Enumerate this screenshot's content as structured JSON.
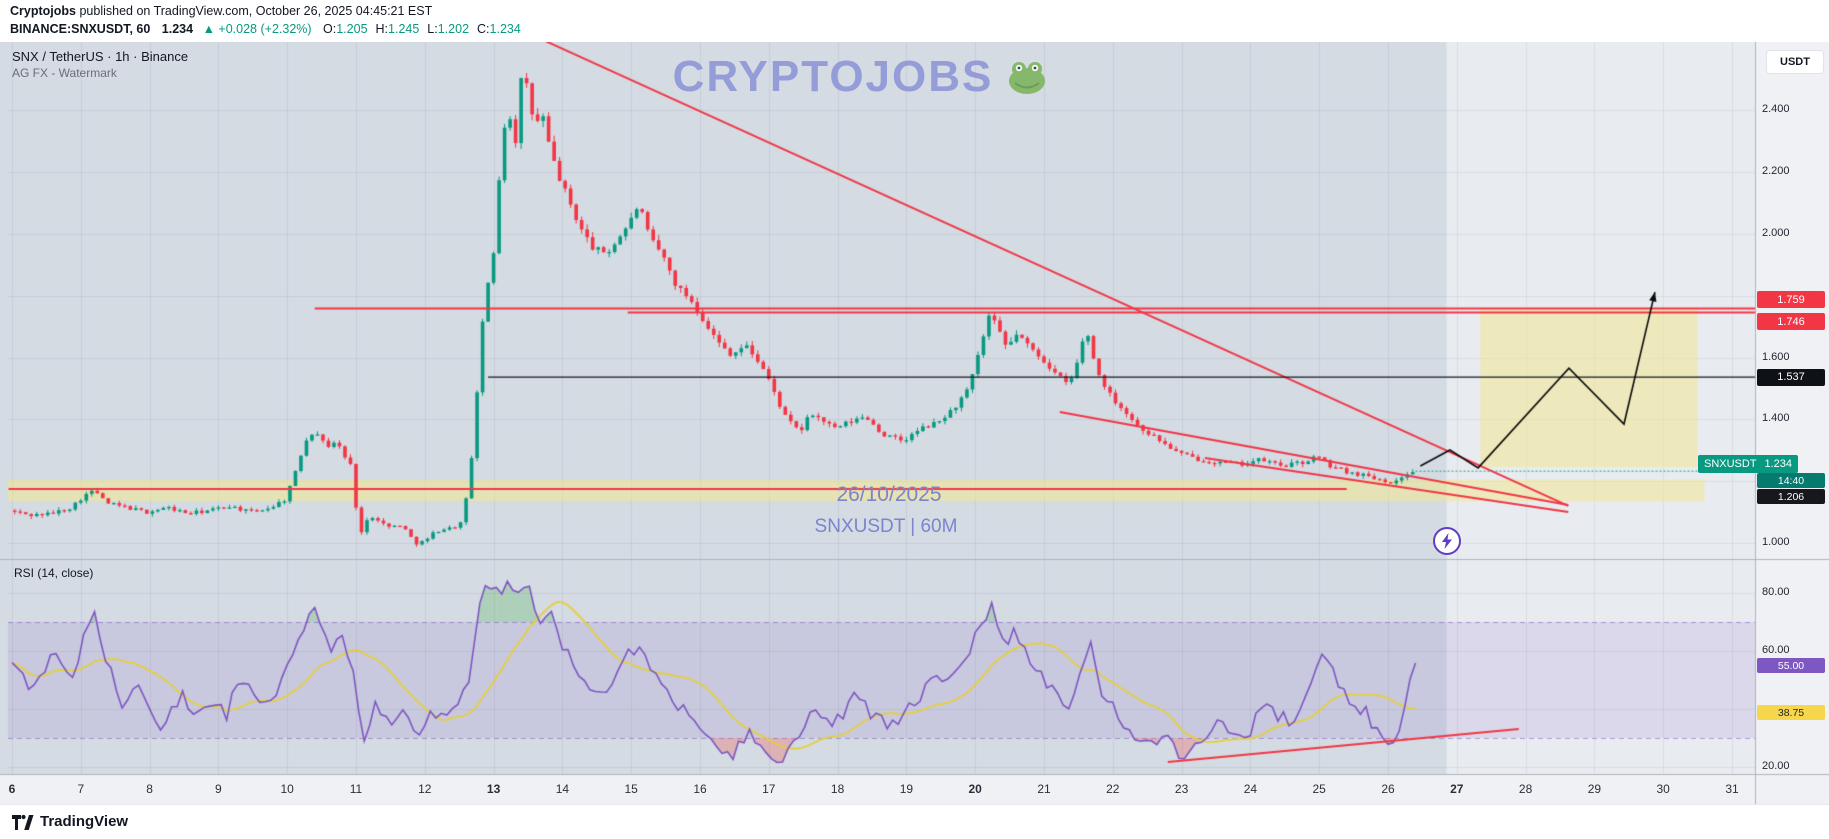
{
  "header": {
    "author": "Cryptojobs",
    "publish_text": " published on TradingView.com, October 26, 2025 04:45:21 EST",
    "symbol_line": {
      "symbol": "BINANCE:SNXUSDT, 60",
      "last": "1.234",
      "arrow": "▲",
      "change": "+0.028 (+2.32%)",
      "ohlc": [
        {
          "k": "O:",
          "v": "1.205"
        },
        {
          "k": "H:",
          "v": "1.245"
        },
        {
          "k": "L:",
          "v": "1.202"
        },
        {
          "k": "C:",
          "v": "1.234"
        }
      ]
    }
  },
  "chart": {
    "legend_title": "SNX / TetherUS · 1h · Binance",
    "legend_sub": "AG FX - Watermark",
    "watermark": "CRYPTOJOBS",
    "annotation_date": "26/10/2025",
    "annotation_symbol": "SNXUSDT | 60M",
    "currency_button": "USDT",
    "rsi_label": "RSI (14, close)",
    "price_axis_labels": [
      {
        "p": 2.4,
        "label": "2.400"
      },
      {
        "p": 2.2,
        "label": "2.200"
      },
      {
        "p": 2.0,
        "label": "2.000"
      },
      {
        "p": 1.6,
        "label": "1.600"
      },
      {
        "p": 1.4,
        "label": "1.400"
      },
      {
        "p": 1.0,
        "label": "1.000"
      }
    ],
    "price_tags": [
      {
        "id": "res1",
        "label": "1.759",
        "price": 1.759,
        "bg": "#f23645"
      },
      {
        "id": "res2",
        "label": "1.746",
        "price": 1.746,
        "bg": "#f23645"
      },
      {
        "id": "mid",
        "label": "1.537",
        "price": 1.537,
        "bg": "#0f1118"
      },
      {
        "id": "last",
        "prefix": "SNXUSDT",
        "label": "1.234",
        "price": 1.234,
        "bg": "#089981"
      },
      {
        "id": "countdown",
        "label": "14:40",
        "bg": "#067a6e"
      },
      {
        "id": "low",
        "label": "1.206",
        "bg": "#16181e"
      }
    ],
    "rsi_axis_labels": [
      {
        "v": 80,
        "label": "80.00"
      },
      {
        "v": 60,
        "label": "60.00"
      },
      {
        "v": 20,
        "label": "20.00"
      }
    ],
    "rsi_tags": [
      {
        "label": "55.00",
        "value": 55.0,
        "bg": "#7e57c2",
        "fg": "#ffffff"
      },
      {
        "label": "38.75",
        "value": 38.75,
        "bg": "#f6d64b",
        "fg": "#1e222d"
      }
    ],
    "time_axis": {
      "labels": [
        "6",
        "7",
        "8",
        "9",
        "10",
        "11",
        "12",
        "13",
        "14",
        "15",
        "16",
        "17",
        "18",
        "19",
        "20",
        "21",
        "22",
        "23",
        "24",
        "25",
        "26",
        "27",
        "28",
        "29",
        "30",
        "31"
      ],
      "bold_labels": [
        "6",
        "13",
        "20",
        "27"
      ]
    }
  },
  "chart_data": {
    "type": "candlestick",
    "symbol": "SNXUSDT",
    "exchange": "Binance",
    "interval": "1h",
    "x_axis": {
      "unit": "day of October 2025",
      "start": 6,
      "end": 31.35
    },
    "y_axis": {
      "min": 0.95,
      "max": 2.61,
      "grid_step": 0.2
    },
    "last_price": 1.234,
    "colors": {
      "up": "#089981",
      "down": "#f23645",
      "line_red": "#f23645",
      "rsi_line": "#7e57c2",
      "rsi_ma": "#e5cf3e",
      "zone_yellow": "rgba(242,232,143,0.55)",
      "band_purple": "rgba(126,87,194,0.13)"
    },
    "price_anchors": [
      [
        6.0,
        1.105
      ],
      [
        6.3,
        1.09
      ],
      [
        6.6,
        1.095
      ],
      [
        6.9,
        1.115
      ],
      [
        7.1,
        1.155
      ],
      [
        7.25,
        1.17
      ],
      [
        7.4,
        1.13
      ],
      [
        7.7,
        1.115
      ],
      [
        8.0,
        1.1
      ],
      [
        8.3,
        1.115
      ],
      [
        8.6,
        1.095
      ],
      [
        8.9,
        1.105
      ],
      [
        9.2,
        1.12
      ],
      [
        9.5,
        1.1
      ],
      [
        9.8,
        1.115
      ],
      [
        10.0,
        1.14
      ],
      [
        10.15,
        1.22
      ],
      [
        10.3,
        1.33
      ],
      [
        10.45,
        1.37
      ],
      [
        10.6,
        1.31
      ],
      [
        10.75,
        1.33
      ],
      [
        10.9,
        1.27
      ],
      [
        11.0,
        1.24
      ],
      [
        11.08,
        1.0
      ],
      [
        11.15,
        1.06
      ],
      [
        11.3,
        1.09
      ],
      [
        11.5,
        1.05
      ],
      [
        11.7,
        1.06
      ],
      [
        11.9,
        1.0
      ],
      [
        12.05,
        1.005
      ],
      [
        12.2,
        1.04
      ],
      [
        12.45,
        1.05
      ],
      [
        12.6,
        1.07
      ],
      [
        12.72,
        1.28
      ],
      [
        12.8,
        1.48
      ],
      [
        12.88,
        1.72
      ],
      [
        12.95,
        1.82
      ],
      [
        13.05,
        1.95
      ],
      [
        13.15,
        2.28
      ],
      [
        13.25,
        2.42
      ],
      [
        13.35,
        2.28
      ],
      [
        13.45,
        2.52
      ],
      [
        13.55,
        2.46
      ],
      [
        13.65,
        2.32
      ],
      [
        13.72,
        2.42
      ],
      [
        13.85,
        2.28
      ],
      [
        14.0,
        2.18
      ],
      [
        14.15,
        2.1
      ],
      [
        14.3,
        2.02
      ],
      [
        14.5,
        1.95
      ],
      [
        14.7,
        1.94
      ],
      [
        14.9,
        2.0
      ],
      [
        15.05,
        2.05
      ],
      [
        15.15,
        2.1
      ],
      [
        15.3,
        1.99
      ],
      [
        15.5,
        1.93
      ],
      [
        15.7,
        1.83
      ],
      [
        15.9,
        1.79
      ],
      [
        16.1,
        1.72
      ],
      [
        16.3,
        1.65
      ],
      [
        16.5,
        1.61
      ],
      [
        16.7,
        1.64
      ],
      [
        16.85,
        1.6
      ],
      [
        17.0,
        1.55
      ],
      [
        17.15,
        1.47
      ],
      [
        17.3,
        1.4
      ],
      [
        17.5,
        1.36
      ],
      [
        17.65,
        1.42
      ],
      [
        17.8,
        1.4
      ],
      [
        18.0,
        1.37
      ],
      [
        18.2,
        1.39
      ],
      [
        18.45,
        1.41
      ],
      [
        18.7,
        1.35
      ],
      [
        19.0,
        1.33
      ],
      [
        19.25,
        1.37
      ],
      [
        19.5,
        1.39
      ],
      [
        19.75,
        1.44
      ],
      [
        19.95,
        1.5
      ],
      [
        20.1,
        1.62
      ],
      [
        20.25,
        1.74
      ],
      [
        20.35,
        1.7
      ],
      [
        20.5,
        1.63
      ],
      [
        20.65,
        1.68
      ],
      [
        20.8,
        1.64
      ],
      [
        21.0,
        1.6
      ],
      [
        21.2,
        1.55
      ],
      [
        21.4,
        1.51
      ],
      [
        21.55,
        1.6
      ],
      [
        21.65,
        1.7
      ],
      [
        21.8,
        1.56
      ],
      [
        22.0,
        1.48
      ],
      [
        22.2,
        1.43
      ],
      [
        22.4,
        1.38
      ],
      [
        22.6,
        1.35
      ],
      [
        22.8,
        1.32
      ],
      [
        23.0,
        1.29
      ],
      [
        23.3,
        1.27
      ],
      [
        23.6,
        1.26
      ],
      [
        23.9,
        1.255
      ],
      [
        24.2,
        1.27
      ],
      [
        24.5,
        1.25
      ],
      [
        24.8,
        1.26
      ],
      [
        25.0,
        1.28
      ],
      [
        25.2,
        1.25
      ],
      [
        25.45,
        1.23
      ],
      [
        25.7,
        1.22
      ],
      [
        25.95,
        1.205
      ],
      [
        26.15,
        1.195
      ],
      [
        26.3,
        1.225
      ],
      [
        26.4,
        1.234
      ]
    ],
    "candle_step_days": 0.08,
    "levels": {
      "resistance": [
        1.759,
        1.746
      ],
      "neckline": 1.537,
      "support_zone": [
        1.135,
        1.205
      ],
      "support_line": 1.175
    },
    "trendlines": [
      {
        "id": "descending-resistance",
        "from": [
          13.7,
          2.63
        ],
        "to": [
          28.62,
          1.12
        ],
        "color": "#f23645",
        "width": 2
      },
      {
        "id": "wedge-upper",
        "from": [
          21.23,
          1.424
        ],
        "to": [
          28.62,
          1.123
        ],
        "color": "#f23645",
        "width": 2
      },
      {
        "id": "wedge-lower",
        "from": [
          23.34,
          1.275
        ],
        "to": [
          28.62,
          1.1
        ],
        "color": "#f23645",
        "width": 2
      },
      {
        "id": "support-horizontal",
        "from": [
          5.95,
          1.175
        ],
        "to": [
          25.4,
          1.175
        ],
        "color": "#f23645",
        "width": 2
      },
      {
        "id": "resistance-1759",
        "from": [
          10.4,
          1.759
        ],
        "to": [
          31.35,
          1.759
        ],
        "color": "#f23645",
        "width": 2
      },
      {
        "id": "resistance-1746",
        "from": [
          14.95,
          1.746
        ],
        "to": [
          31.35,
          1.746
        ],
        "color": "#f23645",
        "width": 2
      },
      {
        "id": "neckline-1537",
        "from": [
          12.92,
          1.537
        ],
        "to": [
          31.35,
          1.537
        ],
        "color": "#131722",
        "width": 1.2
      }
    ],
    "projection_path": [
      [
        26.47,
        1.249
      ],
      [
        26.9,
        1.301
      ],
      [
        27.31,
        1.243
      ],
      [
        28.63,
        1.566
      ],
      [
        29.43,
        1.385
      ],
      [
        29.88,
        1.812
      ]
    ],
    "projection_zone": {
      "days": [
        27.34,
        30.5
      ],
      "price": [
        1.246,
        1.76
      ]
    },
    "highlight_region_end_day": 26.85,
    "rsi": {
      "period": 14,
      "source": "close",
      "bands": [
        30,
        70
      ],
      "current": 55.0,
      "ma_current": 38.75,
      "anchors": [
        [
          6.0,
          55
        ],
        [
          6.3,
          46
        ],
        [
          6.6,
          58
        ],
        [
          6.9,
          50
        ],
        [
          7.05,
          66
        ],
        [
          7.2,
          72
        ],
        [
          7.4,
          55
        ],
        [
          7.6,
          42
        ],
        [
          7.8,
          48
        ],
        [
          8.0,
          40
        ],
        [
          8.2,
          34
        ],
        [
          8.45,
          45
        ],
        [
          8.7,
          38
        ],
        [
          8.9,
          44
        ],
        [
          9.1,
          37
        ],
        [
          9.3,
          52
        ],
        [
          9.5,
          44
        ],
        [
          9.7,
          40
        ],
        [
          9.9,
          50
        ],
        [
          10.1,
          58
        ],
        [
          10.3,
          70
        ],
        [
          10.45,
          74
        ],
        [
          10.6,
          60
        ],
        [
          10.8,
          63
        ],
        [
          11.0,
          52
        ],
        [
          11.1,
          26
        ],
        [
          11.3,
          42
        ],
        [
          11.5,
          36
        ],
        [
          11.7,
          38
        ],
        [
          11.9,
          28
        ],
        [
          12.1,
          40
        ],
        [
          12.3,
          35
        ],
        [
          12.5,
          42
        ],
        [
          12.65,
          48
        ],
        [
          12.75,
          68
        ],
        [
          12.85,
          80
        ],
        [
          12.95,
          84
        ],
        [
          13.1,
          78
        ],
        [
          13.2,
          86
        ],
        [
          13.35,
          78
        ],
        [
          13.5,
          83
        ],
        [
          13.65,
          70
        ],
        [
          13.8,
          74
        ],
        [
          14.0,
          62
        ],
        [
          14.2,
          55
        ],
        [
          14.4,
          48
        ],
        [
          14.6,
          46
        ],
        [
          14.8,
          54
        ],
        [
          15.0,
          60
        ],
        [
          15.15,
          64
        ],
        [
          15.3,
          54
        ],
        [
          15.5,
          48
        ],
        [
          15.7,
          40
        ],
        [
          15.9,
          37
        ],
        [
          16.1,
          33
        ],
        [
          16.3,
          27
        ],
        [
          16.5,
          24
        ],
        [
          16.7,
          33
        ],
        [
          16.9,
          28
        ],
        [
          17.1,
          22
        ],
        [
          17.3,
          26
        ],
        [
          17.5,
          34
        ],
        [
          17.7,
          40
        ],
        [
          17.9,
          36
        ],
        [
          18.1,
          39
        ],
        [
          18.3,
          45
        ],
        [
          18.5,
          38
        ],
        [
          18.7,
          35
        ],
        [
          18.9,
          37
        ],
        [
          19.1,
          42
        ],
        [
          19.3,
          48
        ],
        [
          19.5,
          50
        ],
        [
          19.7,
          54
        ],
        [
          19.9,
          60
        ],
        [
          20.1,
          70
        ],
        [
          20.25,
          76
        ],
        [
          20.4,
          62
        ],
        [
          20.55,
          66
        ],
        [
          20.7,
          60
        ],
        [
          20.85,
          55
        ],
        [
          21.0,
          50
        ],
        [
          21.2,
          44
        ],
        [
          21.4,
          40
        ],
        [
          21.55,
          55
        ],
        [
          21.65,
          64
        ],
        [
          21.8,
          48
        ],
        [
          22.0,
          42
        ],
        [
          22.2,
          34
        ],
        [
          22.4,
          30
        ],
        [
          22.6,
          27
        ],
        [
          22.8,
          32
        ],
        [
          23.0,
          22
        ],
        [
          23.2,
          28
        ],
        [
          23.4,
          32
        ],
        [
          23.6,
          35
        ],
        [
          23.8,
          30
        ],
        [
          24.0,
          33
        ],
        [
          24.2,
          44
        ],
        [
          24.4,
          38
        ],
        [
          24.6,
          35
        ],
        [
          24.8,
          42
        ],
        [
          25.0,
          56
        ],
        [
          25.15,
          60
        ],
        [
          25.3,
          48
        ],
        [
          25.5,
          42
        ],
        [
          25.7,
          38
        ],
        [
          25.9,
          30
        ],
        [
          26.05,
          26
        ],
        [
          26.2,
          33
        ],
        [
          26.3,
          50
        ],
        [
          26.4,
          56
        ]
      ],
      "trendline": {
        "from": [
          22.8,
          21.7
        ],
        "to": [
          27.9,
          33.1
        ],
        "color": "#f23645",
        "width": 2
      }
    }
  },
  "footer": {
    "brand": "TradingView"
  }
}
